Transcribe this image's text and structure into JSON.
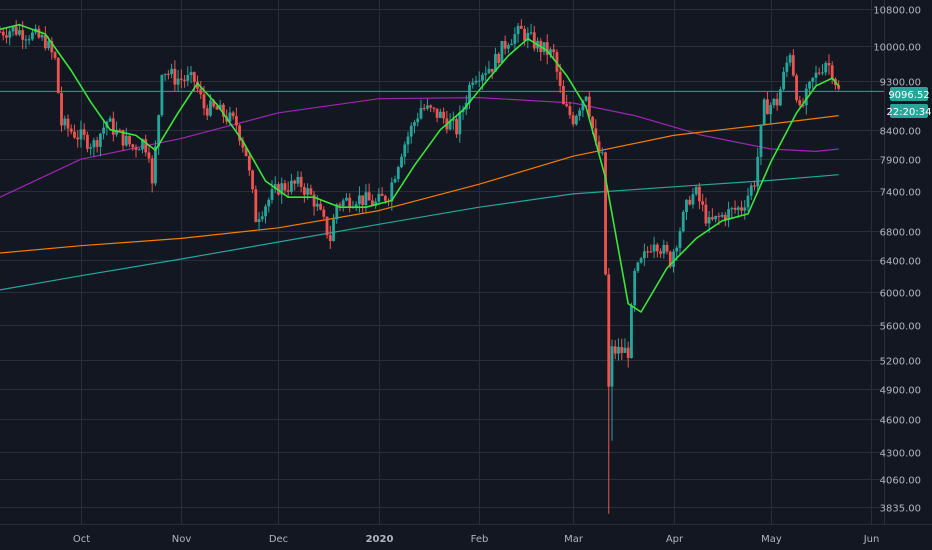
{
  "chart_data": {
    "type": "candlestick",
    "scale": "log",
    "grid": true,
    "colors": {
      "background": "#131722",
      "grid": "#2a2e39",
      "up": "#26a69a",
      "down": "#ef5350",
      "ma_fast": "#39e639",
      "ma_purple": "#9c27b0",
      "ma_orange": "#f57c00",
      "ma_teal": "#26a69a",
      "price_line": "#26a69a",
      "text": "#b2b5be"
    },
    "y_ticks": [
      "10800.00",
      "10000.00",
      "9300.00",
      "8400.00",
      "7900.00",
      "7400.00",
      "6800.00",
      "6400.00",
      "6000.00",
      "5600.00",
      "5200.00",
      "4900.00",
      "4600.00",
      "4300.00",
      "4060.00",
      "3835.00"
    ],
    "x_ticks": [
      {
        "label": "Oct",
        "date": "2019-10-01"
      },
      {
        "label": "Nov",
        "date": "2019-11-01"
      },
      {
        "label": "Dec",
        "date": "2019-12-01"
      },
      {
        "label": "2020",
        "date": "2020-01-01",
        "bold": true
      },
      {
        "label": "Feb",
        "date": "2020-02-01"
      },
      {
        "label": "Mar",
        "date": "2020-03-01"
      },
      {
        "label": "Apr",
        "date": "2020-04-01"
      },
      {
        "label": "May",
        "date": "2020-05-01"
      },
      {
        "label": "Jun",
        "date": "2020-06-01"
      }
    ],
    "x_range": [
      "2019-09-06",
      "2020-06-05"
    ],
    "y_range": [
      3700,
      11000
    ],
    "current_price": "9096.52",
    "countdown": "22:20:34",
    "current_value": 9096.52,
    "close_keys": [
      [
        "2019-09-06",
        10300
      ],
      [
        "2019-09-10",
        10350
      ],
      [
        "2019-09-15",
        10250
      ],
      [
        "2019-09-20",
        10100
      ],
      [
        "2019-09-23",
        9700
      ],
      [
        "2019-09-25",
        8500
      ],
      [
        "2019-09-30",
        8300
      ],
      [
        "2019-10-05",
        8150
      ],
      [
        "2019-10-09",
        8550
      ],
      [
        "2019-10-12",
        8350
      ],
      [
        "2019-10-17",
        8100
      ],
      [
        "2019-10-20",
        8200
      ],
      [
        "2019-10-22",
        8050
      ],
      [
        "2019-10-23",
        7450
      ],
      [
        "2019-10-25",
        8700
      ],
      [
        "2019-10-26",
        9550
      ],
      [
        "2019-10-30",
        9350
      ],
      [
        "2019-11-05",
        9300
      ],
      [
        "2019-11-08",
        8800
      ],
      [
        "2019-11-12",
        8750
      ],
      [
        "2019-11-18",
        8500
      ],
      [
        "2019-11-21",
        8000
      ],
      [
        "2019-11-24",
        7000
      ],
      [
        "2019-11-27",
        7200
      ],
      [
        "2019-12-01",
        7450
      ],
      [
        "2019-12-08",
        7500
      ],
      [
        "2019-12-12",
        7250
      ],
      [
        "2019-12-17",
        6700
      ],
      [
        "2019-12-19",
        7200
      ],
      [
        "2019-12-25",
        7300
      ],
      [
        "2019-12-31",
        7200
      ],
      [
        "2020-01-04",
        7350
      ],
      [
        "2020-01-08",
        8050
      ],
      [
        "2020-01-14",
        8800
      ],
      [
        "2020-01-20",
        8650
      ],
      [
        "2020-01-25",
        8400
      ],
      [
        "2020-01-30",
        9400
      ],
      [
        "2020-02-05",
        9600
      ],
      [
        "2020-02-10",
        10150
      ],
      [
        "2020-02-14",
        10300
      ],
      [
        "2020-02-19",
        10000
      ],
      [
        "2020-02-24",
        9800
      ],
      [
        "2020-02-27",
        8800
      ],
      [
        "2020-03-01",
        8600
      ],
      [
        "2020-03-05",
        9100
      ],
      [
        "2020-03-08",
        8100
      ],
      [
        "2020-03-10",
        7900
      ],
      [
        "2020-03-12",
        4900
      ],
      [
        "2020-03-13",
        5300
      ],
      [
        "2020-03-18",
        5300
      ],
      [
        "2020-03-20",
        6200
      ],
      [
        "2020-03-26",
        6700
      ],
      [
        "2020-03-31",
        6400
      ],
      [
        "2020-04-06",
        7300
      ],
      [
        "2020-04-08",
        7350
      ],
      [
        "2020-04-12",
        6900
      ],
      [
        "2020-04-17",
        7050
      ],
      [
        "2020-04-22",
        7150
      ],
      [
        "2020-04-26",
        7550
      ],
      [
        "2020-04-29",
        8800
      ],
      [
        "2020-05-03",
        8900
      ],
      [
        "2020-05-07",
        9900
      ],
      [
        "2020-05-10",
        8700
      ],
      [
        "2020-05-14",
        9300
      ],
      [
        "2020-05-18",
        9700
      ],
      [
        "2020-05-20",
        9500
      ],
      [
        "2020-05-22",
        9096
      ]
    ],
    "series": [
      {
        "key": "ma_fast",
        "color": "#39e639",
        "width": 1.6,
        "points": [
          [
            "2019-09-06",
            10350
          ],
          [
            "2019-09-12",
            10450
          ],
          [
            "2019-09-20",
            10250
          ],
          [
            "2019-09-28",
            9500
          ],
          [
            "2019-10-04",
            8900
          ],
          [
            "2019-10-10",
            8400
          ],
          [
            "2019-10-18",
            8300
          ],
          [
            "2019-10-24",
            8050
          ],
          [
            "2019-10-31",
            8700
          ],
          [
            "2019-11-06",
            9250
          ],
          [
            "2019-11-12",
            8850
          ],
          [
            "2019-11-20",
            8200
          ],
          [
            "2019-11-27",
            7550
          ],
          [
            "2019-12-04",
            7300
          ],
          [
            "2019-12-12",
            7300
          ],
          [
            "2019-12-20",
            7150
          ],
          [
            "2019-12-28",
            7150
          ],
          [
            "2020-01-05",
            7250
          ],
          [
            "2020-01-12",
            7800
          ],
          [
            "2020-01-20",
            8400
          ],
          [
            "2020-01-27",
            8750
          ],
          [
            "2020-02-04",
            9350
          ],
          [
            "2020-02-10",
            9800
          ],
          [
            "2020-02-16",
            10150
          ],
          [
            "2020-02-22",
            9900
          ],
          [
            "2020-02-28",
            9400
          ],
          [
            "2020-03-05",
            8800
          ],
          [
            "2020-03-11",
            7600
          ],
          [
            "2020-03-18",
            5850
          ],
          [
            "2020-03-22",
            5750
          ],
          [
            "2020-03-30",
            6300
          ],
          [
            "2020-04-08",
            6700
          ],
          [
            "2020-04-16",
            6950
          ],
          [
            "2020-04-24",
            7050
          ],
          [
            "2020-05-01",
            7850
          ],
          [
            "2020-05-09",
            8700
          ],
          [
            "2020-05-15",
            9200
          ],
          [
            "2020-05-20",
            9350
          ],
          [
            "2020-05-22",
            9200
          ]
        ]
      },
      {
        "key": "ma_purple",
        "color": "#9c27b0",
        "width": 1.2,
        "points": [
          [
            "2019-09-06",
            7300
          ],
          [
            "2019-10-01",
            7900
          ],
          [
            "2019-11-01",
            8250
          ],
          [
            "2019-12-01",
            8700
          ],
          [
            "2020-01-01",
            8960
          ],
          [
            "2020-02-01",
            8980
          ],
          [
            "2020-03-01",
            8880
          ],
          [
            "2020-03-20",
            8650
          ],
          [
            "2020-04-10",
            8300
          ],
          [
            "2020-05-01",
            8070
          ],
          [
            "2020-05-15",
            8030
          ],
          [
            "2020-05-22",
            8070
          ]
        ]
      },
      {
        "key": "ma_orange",
        "color": "#f57c00",
        "width": 1.2,
        "points": [
          [
            "2019-09-06",
            6500
          ],
          [
            "2019-10-01",
            6600
          ],
          [
            "2019-11-01",
            6700
          ],
          [
            "2019-12-01",
            6850
          ],
          [
            "2020-01-01",
            7100
          ],
          [
            "2020-02-01",
            7500
          ],
          [
            "2020-03-01",
            7950
          ],
          [
            "2020-04-01",
            8300
          ],
          [
            "2020-05-01",
            8500
          ],
          [
            "2020-05-22",
            8650
          ]
        ]
      },
      {
        "key": "ma_teal",
        "color": "#26a69a",
        "width": 1.2,
        "points": [
          [
            "2019-09-06",
            6020
          ],
          [
            "2019-10-01",
            6200
          ],
          [
            "2019-11-01",
            6420
          ],
          [
            "2019-12-01",
            6650
          ],
          [
            "2020-01-01",
            6900
          ],
          [
            "2020-02-01",
            7150
          ],
          [
            "2020-03-01",
            7350
          ],
          [
            "2020-04-01",
            7460
          ],
          [
            "2020-05-01",
            7560
          ],
          [
            "2020-05-22",
            7650
          ]
        ]
      }
    ]
  }
}
